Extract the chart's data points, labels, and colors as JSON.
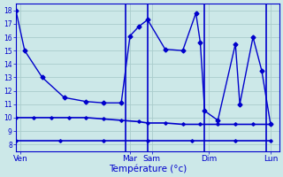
{
  "background_color": "#cce8e8",
  "grid_color": "#aacccc",
  "line_color": "#0000cc",
  "xlabel": "Température (°c)",
  "ylim": [
    7.5,
    18.5
  ],
  "ytick_min": 8,
  "ytick_max": 18,
  "xlim": [
    0,
    30
  ],
  "day_labels": [
    "Ven",
    "Mar",
    "Sam",
    "Dim",
    "Lun"
  ],
  "day_positions": [
    0.5,
    13,
    15.5,
    22,
    29
  ],
  "vline_positions": [
    12.5,
    15,
    21.5,
    28.5
  ],
  "main_x": [
    0,
    1,
    3,
    5.5,
    8,
    10,
    12,
    13,
    14,
    15,
    17,
    19,
    20.5,
    21,
    21.5,
    23,
    25,
    25.5,
    27,
    28,
    29
  ],
  "main_y": [
    18,
    15,
    13,
    11.5,
    11.2,
    11.1,
    11.1,
    16.1,
    16.8,
    17.3,
    15.1,
    15.0,
    17.8,
    15.6,
    10.5,
    9.8,
    15.5,
    11,
    16,
    13.5,
    9.5
  ],
  "flat1_x": [
    0,
    2,
    4,
    6,
    8,
    10,
    12,
    14,
    15,
    17,
    19,
    21,
    23,
    25,
    27,
    29
  ],
  "flat1_y": [
    10,
    10,
    10,
    10,
    10,
    9.9,
    9.8,
    9.7,
    9.6,
    9.6,
    9.5,
    9.5,
    9.5,
    9.5,
    9.5,
    9.5
  ],
  "flat2_x": [
    0,
    5,
    10,
    15,
    20,
    25,
    29
  ],
  "flat2_y": [
    8.3,
    8.3,
    8.3,
    8.3,
    8.3,
    8.3,
    8.3
  ],
  "marker_size_main": 2.5,
  "marker_size_flat": 1.8,
  "lw_main": 1.0,
  "lw_flat": 1.2
}
